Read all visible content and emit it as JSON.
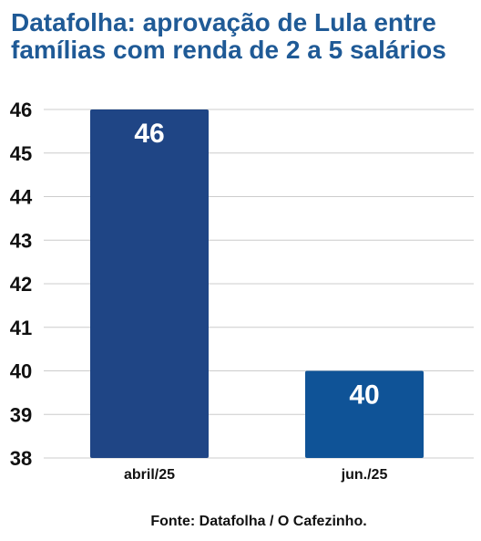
{
  "title": "Datafolha: aprovação de Lula entre famílias com renda de 2 a 5 salários",
  "source": "Fonte: Datafolha / O Cafezinho.",
  "chart_data": {
    "type": "bar",
    "title": "Datafolha: aprovação de Lula entre famílias com renda de 2 a 5 salários",
    "categories": [
      "abril/25",
      "jun./25"
    ],
    "values": [
      46,
      40
    ],
    "data_labels": [
      "46",
      "40"
    ],
    "bar_colors": [
      "#1f4585",
      "#0f5397"
    ],
    "ylim": [
      38,
      46
    ],
    "yticks": [
      38,
      39,
      40,
      41,
      42,
      43,
      44,
      45,
      46
    ],
    "xlabel": "",
    "ylabel": "",
    "grid": true,
    "legend": "none"
  }
}
